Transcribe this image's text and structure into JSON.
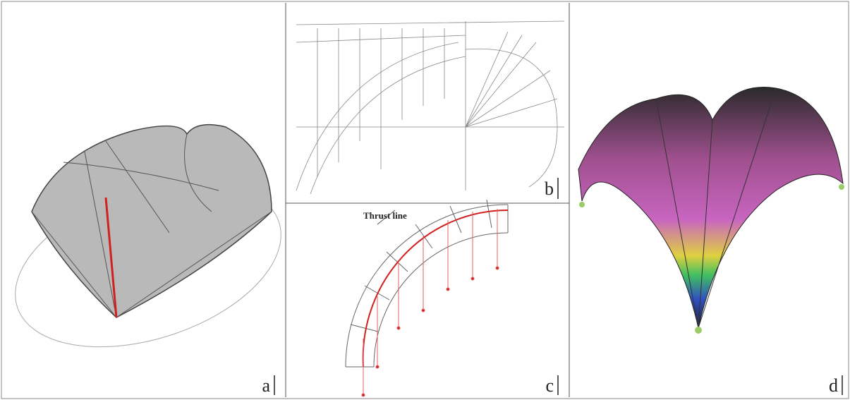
{
  "panels": {
    "a": {
      "label": "a"
    },
    "b": {
      "label": "b"
    },
    "c": {
      "label": "c",
      "annotation": "Thrust line"
    },
    "d": {
      "label": "d"
    }
  }
}
